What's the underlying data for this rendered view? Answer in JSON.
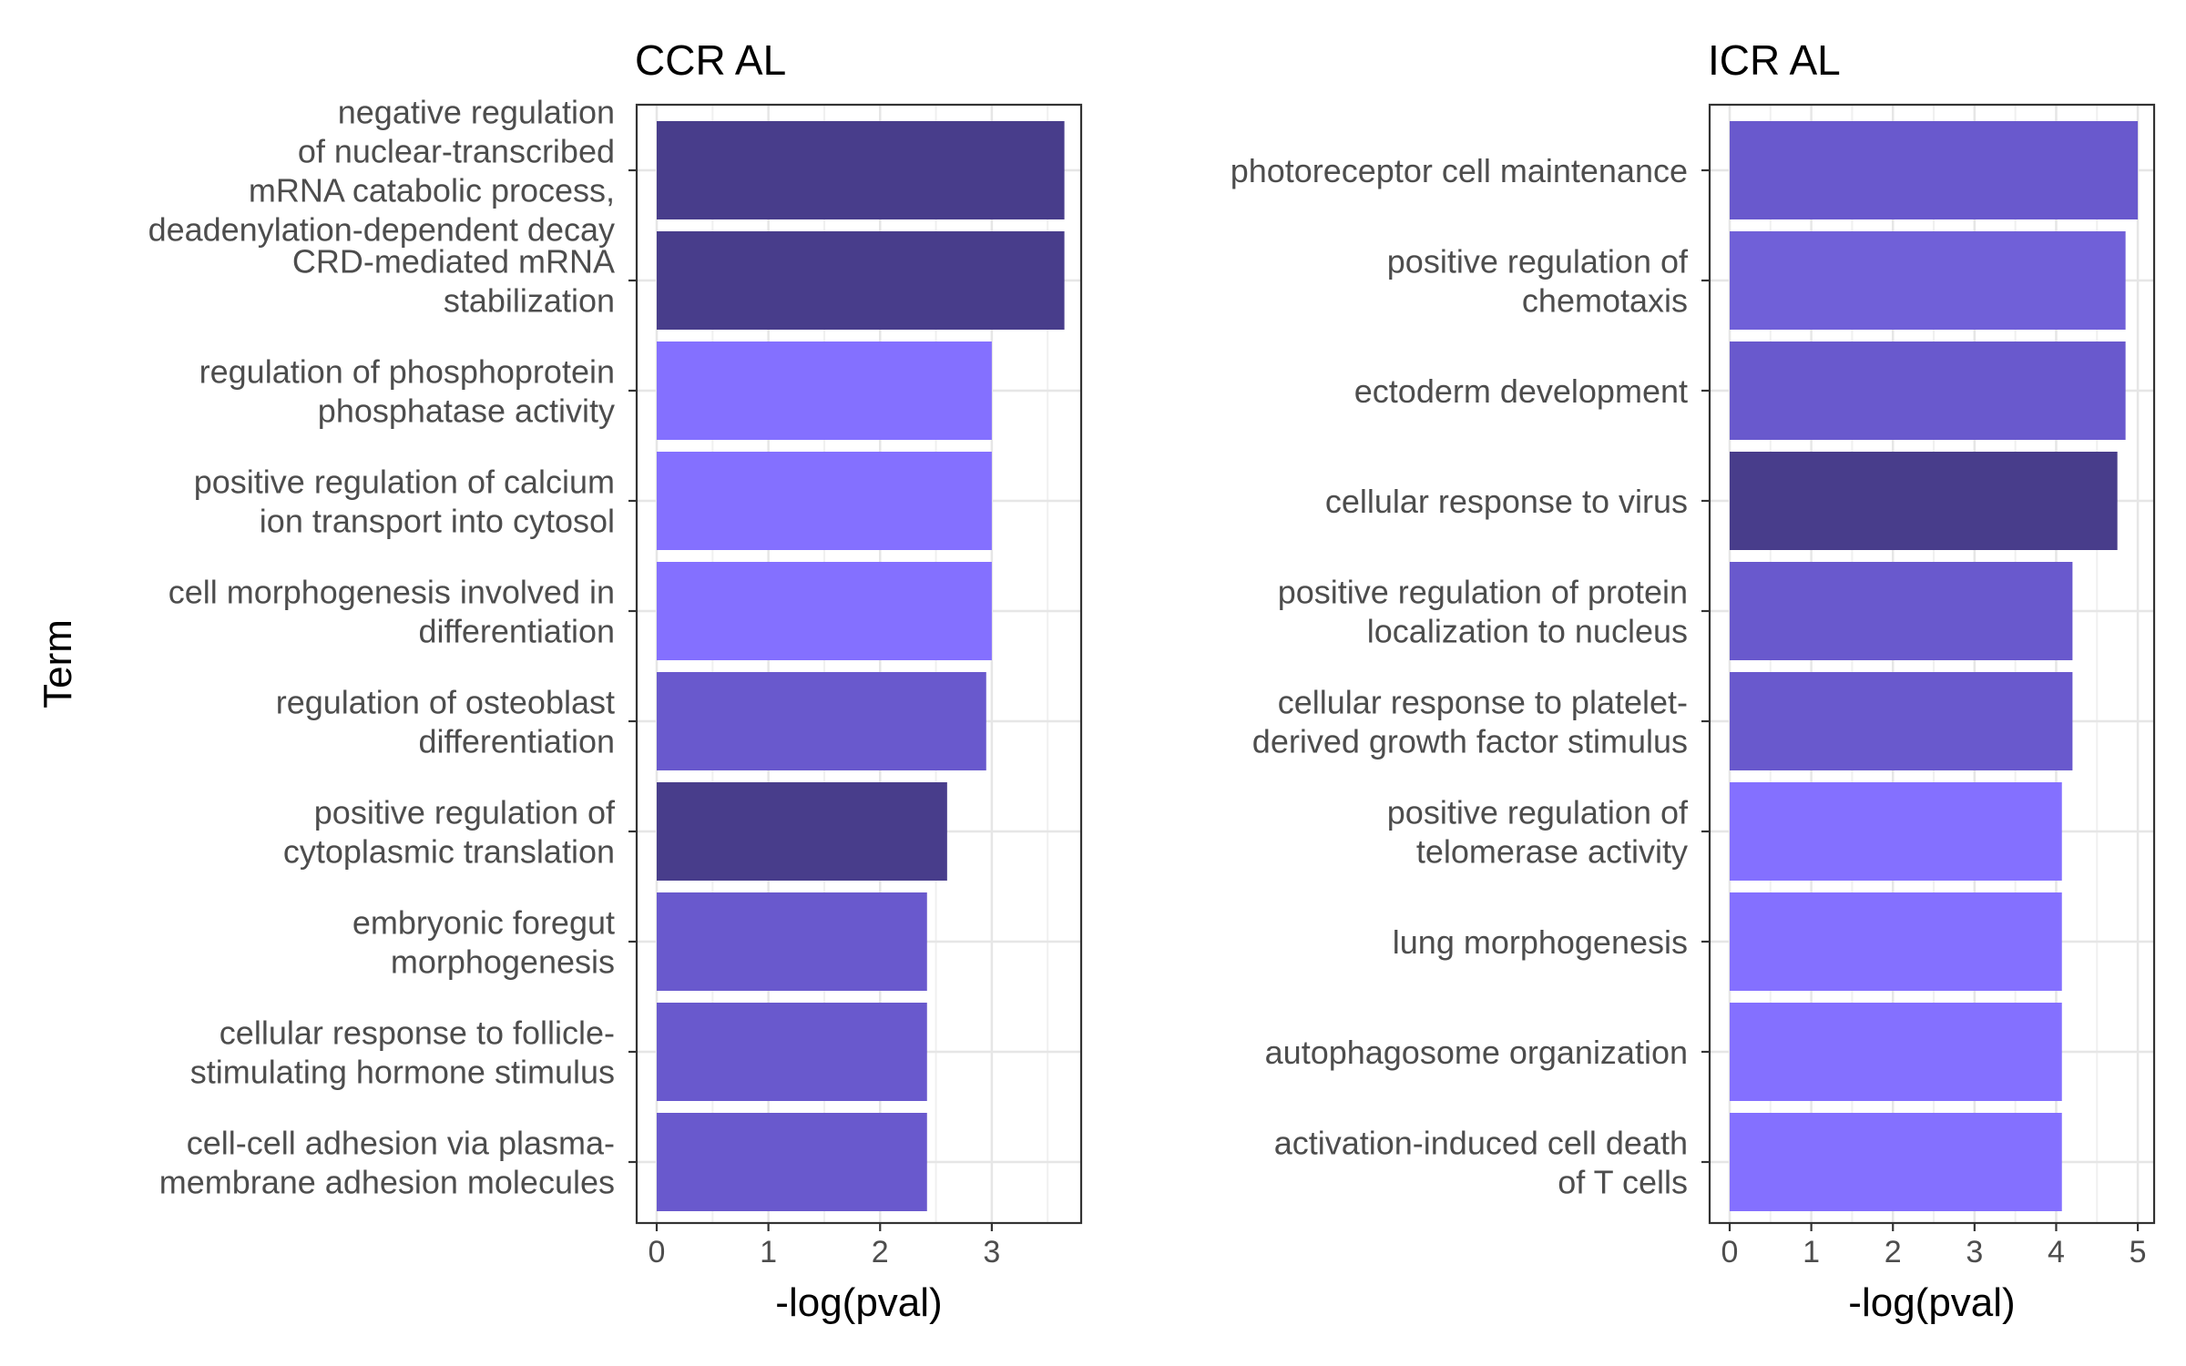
{
  "chart_data": [
    {
      "type": "bar",
      "orientation": "horizontal",
      "title": "CCR AL",
      "xlabel": "-log(pval)",
      "ylabel": "Term",
      "xlim": [
        0,
        3.8
      ],
      "xticks": [
        0,
        1,
        2,
        3
      ],
      "grid": true,
      "categories": [
        "negative regulation of nuclear-transcribed mRNA catabolic process, deadenylation-dependent decay",
        "CRD-mediated mRNA stabilization",
        "regulation of phosphoprotein phosphatase activity",
        "positive regulation of calcium ion transport into cytosol",
        "cell morphogenesis involved in differentiation",
        "regulation of osteoblast differentiation",
        "positive regulation of cytoplasmic translation",
        "embryonic foregut morphogenesis",
        "cellular response to follicle-stimulating hormone stimulus",
        "cell-cell adhesion via plasma-membrane adhesion molecules"
      ],
      "category_lines": [
        [
          "negative regulation",
          "of nuclear-transcribed",
          "mRNA catabolic process,",
          "deadenylation-dependent decay"
        ],
        [
          "CRD-mediated mRNA",
          "stabilization"
        ],
        [
          "regulation of phosphoprotein",
          "phosphatase activity"
        ],
        [
          "positive regulation of calcium",
          "ion transport into cytosol"
        ],
        [
          "cell morphogenesis involved in",
          "differentiation"
        ],
        [
          "regulation of osteoblast",
          "differentiation"
        ],
        [
          "positive regulation of",
          "cytoplasmic translation"
        ],
        [
          "embryonic foregut",
          "morphogenesis"
        ],
        [
          "cellular response to follicle-",
          "stimulating hormone stimulus"
        ],
        [
          "cell-cell adhesion via plasma-",
          "membrane adhesion molecules"
        ]
      ],
      "values": [
        3.65,
        3.65,
        3.0,
        3.0,
        3.0,
        2.95,
        2.6,
        2.42,
        2.42,
        2.42
      ],
      "colors": [
        "#483D8B",
        "#483D8B",
        "#8470FF",
        "#8470FF",
        "#8470FF",
        "#6959CD",
        "#483D8B",
        "#6959CD",
        "#6959CD",
        "#6959CD"
      ]
    },
    {
      "type": "bar",
      "orientation": "horizontal",
      "title": "ICR AL",
      "xlabel": "-log(pval)",
      "ylabel": "",
      "xlim": [
        0,
        5.2
      ],
      "xticks": [
        0,
        1,
        2,
        3,
        4,
        5
      ],
      "grid": true,
      "categories": [
        "photoreceptor cell maintenance",
        "positive regulation of chemotaxis",
        "ectoderm development",
        "cellular response to virus",
        "positive regulation of protein localization to nucleus",
        "cellular response to platelet-derived growth factor stimulus",
        "positive regulation of telomerase activity",
        "lung morphogenesis",
        "autophagosome organization",
        "activation-induced cell death of T cells"
      ],
      "category_lines": [
        [
          "photoreceptor cell maintenance"
        ],
        [
          "positive regulation of",
          "chemotaxis"
        ],
        [
          "ectoderm development"
        ],
        [
          "cellular response to virus"
        ],
        [
          "positive regulation of protein",
          "localization to nucleus"
        ],
        [
          "cellular response to platelet-",
          "derived growth factor stimulus"
        ],
        [
          "positive regulation of",
          "telomerase activity"
        ],
        [
          "lung morphogenesis"
        ],
        [
          "autophagosome organization"
        ],
        [
          "activation-induced cell death",
          "of T cells"
        ]
      ],
      "values": [
        5.0,
        4.85,
        4.85,
        4.75,
        4.2,
        4.2,
        4.07,
        4.07,
        4.07,
        4.07
      ],
      "colors": [
        "#6959CD",
        "#7060D8",
        "#6959CD",
        "#483D8B",
        "#6959CD",
        "#6959CD",
        "#8470FF",
        "#8470FF",
        "#8470FF",
        "#8470FF"
      ]
    }
  ]
}
